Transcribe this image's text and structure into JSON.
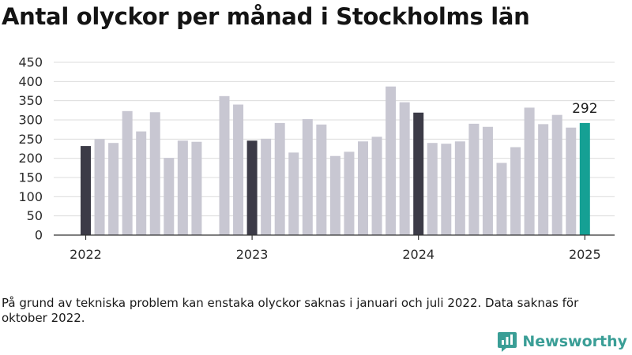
{
  "title": "Antal olyckor per månad i Stockholms län",
  "note": "På grund av tekniska problem kan enstaka olyckor saknas i januari och juli 2022. Data saknas för oktober 2022.",
  "brand": {
    "name": "Newsworthy",
    "icon": "newsworthy-logo-icon",
    "color": "#3a9e96"
  },
  "colors": {
    "default": "#c8c7d2",
    "january": "#3c3b47",
    "latest": "#15a094"
  },
  "chart_data": {
    "type": "bar",
    "title": "Antal olyckor per månad i Stockholms län",
    "xlabel": "",
    "ylabel": "",
    "ylim": [
      0,
      450
    ],
    "yticks": [
      0,
      50,
      100,
      150,
      200,
      250,
      300,
      350,
      400,
      450
    ],
    "xtick_labels": [
      "2022",
      "2023",
      "2024",
      "2025"
    ],
    "grid": true,
    "highlight_label": "292",
    "categories": [
      "2022-01",
      "2022-02",
      "2022-03",
      "2022-04",
      "2022-05",
      "2022-06",
      "2022-07",
      "2022-08",
      "2022-09",
      "2022-10",
      "2022-11",
      "2022-12",
      "2023-01",
      "2023-02",
      "2023-03",
      "2023-04",
      "2023-05",
      "2023-06",
      "2023-07",
      "2023-08",
      "2023-09",
      "2023-10",
      "2023-11",
      "2023-12",
      "2024-01",
      "2024-02",
      "2024-03",
      "2024-04",
      "2024-05",
      "2024-06",
      "2024-07",
      "2024-08",
      "2024-09",
      "2024-10",
      "2024-11",
      "2024-12",
      "2025-01"
    ],
    "values": [
      232,
      250,
      240,
      323,
      270,
      320,
      201,
      246,
      243,
      null,
      362,
      340,
      246,
      251,
      292,
      215,
      302,
      288,
      206,
      217,
      244,
      256,
      387,
      346,
      319,
      240,
      238,
      244,
      290,
      282,
      188,
      229,
      332,
      289,
      313,
      280,
      292
    ]
  }
}
